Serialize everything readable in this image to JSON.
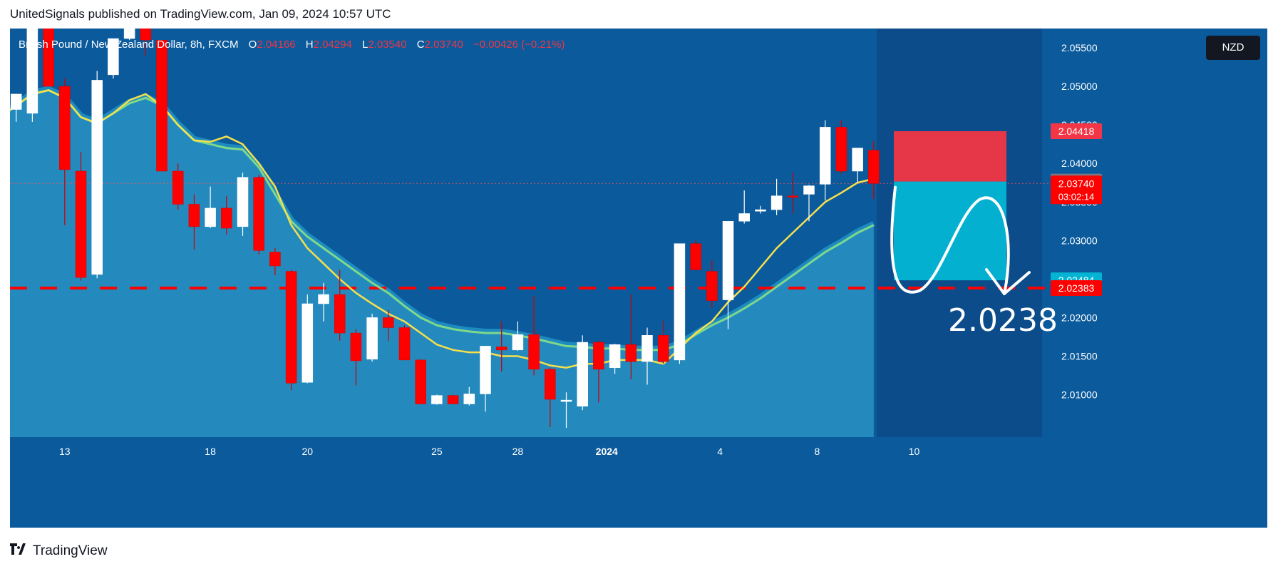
{
  "header": {
    "text": "UnitedSignals published on TradingView.com, Jan 09, 2024 10:57 UTC"
  },
  "legend": {
    "symbol": "British Pound / New Zealand Dollar, 8h, FXCM",
    "open_label": "O",
    "open": "2.04166",
    "high_label": "H",
    "high": "2.04294",
    "low_label": "L",
    "low": "2.03540",
    "close_label": "C",
    "close": "2.03740",
    "change": "−0.00426 (−0.21%)"
  },
  "currency": "NZD",
  "footer": {
    "brand": "TradingView",
    "logo_icon": "tradingview-logo-icon"
  },
  "colors": {
    "background": "#0a5a9c",
    "up": "#ffffff",
    "down": "#ff0000",
    "ma_fast": "#f7e04b",
    "ma_slow": "#7fd88a",
    "area": "#2d9bc9",
    "stop_zone": "#f23645",
    "target_zone": "#03b5d3",
    "level_line": "#ff0000"
  },
  "chart_data": {
    "type": "candlestick",
    "timeframe": "8h",
    "y_axis": {
      "ticks": [
        "2.05500",
        "2.05000",
        "2.04500",
        "2.04000",
        "2.03500",
        "2.03000",
        "2.02500",
        "2.02000",
        "2.01500",
        "2.01000"
      ],
      "ylim": [
        2.0045,
        2.0575
      ]
    },
    "x_axis": {
      "tick_labels": [
        "13",
        "18",
        "20",
        "25",
        "28",
        "2024",
        "4",
        "8",
        "10"
      ]
    },
    "candles": [
      {
        "o": 2.0478,
        "h": 2.0488,
        "l": 2.046,
        "c": 2.046
      },
      {
        "o": 2.047,
        "h": 2.049,
        "l": 2.0454,
        "c": 2.049
      },
      {
        "o": 2.0465,
        "h": 2.0595,
        "l": 2.0454,
        "c": 2.0585
      },
      {
        "o": 2.0585,
        "h": 2.0595,
        "l": 2.05,
        "c": 2.05
      },
      {
        "o": 2.05,
        "h": 2.051,
        "l": 2.032,
        "c": 2.0392
      },
      {
        "o": 2.039,
        "h": 2.0415,
        "l": 2.0248,
        "c": 2.0252
      },
      {
        "o": 2.0256,
        "h": 2.052,
        "l": 2.0251,
        "c": 2.0508
      },
      {
        "o": 2.0515,
        "h": 2.0562,
        "l": 2.051,
        "c": 2.0562
      },
      {
        "o": 2.0562,
        "h": 2.0585,
        "l": 2.056,
        "c": 2.0585
      },
      {
        "o": 2.059,
        "h": 2.0598,
        "l": 2.054,
        "c": 2.056
      },
      {
        "o": 2.056,
        "h": 2.056,
        "l": 2.039,
        "c": 2.039
      },
      {
        "o": 2.039,
        "h": 2.04,
        "l": 2.034,
        "c": 2.0347
      },
      {
        "o": 2.0347,
        "h": 2.036,
        "l": 2.0288,
        "c": 2.0318
      },
      {
        "o": 2.0318,
        "h": 2.037,
        "l": 2.0316,
        "c": 2.0342
      },
      {
        "o": 2.0342,
        "h": 2.0358,
        "l": 2.0308,
        "c": 2.0316
      },
      {
        "o": 2.0318,
        "h": 2.0388,
        "l": 2.0306,
        "c": 2.0382
      },
      {
        "o": 2.0382,
        "h": 2.0385,
        "l": 2.0282,
        "c": 2.0287
      },
      {
        "o": 2.0285,
        "h": 2.029,
        "l": 2.0255,
        "c": 2.0267
      },
      {
        "o": 2.026,
        "h": 2.0262,
        "l": 2.0106,
        "c": 2.0115
      },
      {
        "o": 2.0116,
        "h": 2.023,
        "l": 2.0115,
        "c": 2.0218
      },
      {
        "o": 2.0218,
        "h": 2.0245,
        "l": 2.0195,
        "c": 2.023
      },
      {
        "o": 2.023,
        "h": 2.0262,
        "l": 2.017,
        "c": 2.018
      },
      {
        "o": 2.018,
        "h": 2.0185,
        "l": 2.0112,
        "c": 2.0144
      },
      {
        "o": 2.0146,
        "h": 2.0205,
        "l": 2.0143,
        "c": 2.02
      },
      {
        "o": 2.02,
        "h": 2.021,
        "l": 2.017,
        "c": 2.0187
      },
      {
        "o": 2.0187,
        "h": 2.019,
        "l": 2.0145,
        "c": 2.0145
      },
      {
        "o": 2.0145,
        "h": 2.0146,
        "l": 2.0088,
        "c": 2.0088
      },
      {
        "o": 2.0088,
        "h": 2.01,
        "l": 2.0087,
        "c": 2.0099
      },
      {
        "o": 2.0099,
        "h": 2.01,
        "l": 2.0088,
        "c": 2.0088
      },
      {
        "o": 2.0088,
        "h": 2.011,
        "l": 2.0086,
        "c": 2.0101
      },
      {
        "o": 2.0101,
        "h": 2.0163,
        "l": 2.0078,
        "c": 2.0163
      },
      {
        "o": 2.0162,
        "h": 2.0195,
        "l": 2.013,
        "c": 2.0158
      },
      {
        "o": 2.0158,
        "h": 2.0195,
        "l": 2.0157,
        "c": 2.0178
      },
      {
        "o": 2.0178,
        "h": 2.0228,
        "l": 2.0125,
        "c": 2.0133
      },
      {
        "o": 2.0133,
        "h": 2.0135,
        "l": 2.0058,
        "c": 2.0094
      },
      {
        "o": 2.0093,
        "h": 2.0103,
        "l": 2.0057,
        "c": 2.0093
      },
      {
        "o": 2.0085,
        "h": 2.0177,
        "l": 2.008,
        "c": 2.0168
      },
      {
        "o": 2.0168,
        "h": 2.017,
        "l": 2.009,
        "c": 2.0133
      },
      {
        "o": 2.0135,
        "h": 2.0166,
        "l": 2.0127,
        "c": 2.0165
      },
      {
        "o": 2.0165,
        "h": 2.023,
        "l": 2.012,
        "c": 2.0143
      },
      {
        "o": 2.0143,
        "h": 2.0187,
        "l": 2.0113,
        "c": 2.0177
      },
      {
        "o": 2.0177,
        "h": 2.0196,
        "l": 2.014,
        "c": 2.0143
      },
      {
        "o": 2.0145,
        "h": 2.0296,
        "l": 2.014,
        "c": 2.0296
      },
      {
        "o": 2.0296,
        "h": 2.03,
        "l": 2.0262,
        "c": 2.0262
      },
      {
        "o": 2.026,
        "h": 2.0274,
        "l": 2.0213,
        "c": 2.0222
      },
      {
        "o": 2.0223,
        "h": 2.0325,
        "l": 2.0185,
        "c": 2.0325
      },
      {
        "o": 2.0325,
        "h": 2.0365,
        "l": 2.0322,
        "c": 2.0335
      },
      {
        "o": 2.0338,
        "h": 2.0345,
        "l": 2.0335,
        "c": 2.034
      },
      {
        "o": 2.034,
        "h": 2.038,
        "l": 2.0333,
        "c": 2.0358
      },
      {
        "o": 2.0358,
        "h": 2.0388,
        "l": 2.0335,
        "c": 2.0356
      },
      {
        "o": 2.036,
        "h": 2.0372,
        "l": 2.0325,
        "c": 2.0371
      },
      {
        "o": 2.0373,
        "h": 2.0456,
        "l": 2.0352,
        "c": 2.0447
      },
      {
        "o": 2.0447,
        "h": 2.0456,
        "l": 2.0387,
        "c": 2.039
      },
      {
        "o": 2.039,
        "h": 2.042,
        "l": 2.0375,
        "c": 2.042
      },
      {
        "o": 2.0417,
        "h": 2.0429,
        "l": 2.0354,
        "c": 2.0374
      }
    ],
    "ma_fast": [
      2.046,
      2.0475,
      2.049,
      2.0495,
      2.0485,
      2.046,
      2.0452,
      2.0465,
      2.0482,
      2.049,
      2.0475,
      2.045,
      2.043,
      2.0428,
      2.0435,
      2.0425,
      2.04,
      2.037,
      2.032,
      2.029,
      2.027,
      2.025,
      2.0232,
      2.0218,
      2.0205,
      2.0195,
      2.018,
      2.0165,
      2.0158,
      2.0155,
      2.0155,
      2.015,
      2.015,
      2.0145,
      2.0138,
      2.0135,
      2.014,
      2.014,
      2.0145,
      2.0145,
      2.0145,
      2.014,
      2.016,
      2.018,
      2.0195,
      2.022,
      2.024,
      2.0265,
      2.029,
      2.031,
      2.033,
      2.035,
      2.0362,
      2.0375,
      2.038
    ],
    "ma_slow": [
      2.046,
      2.0475,
      2.049,
      2.0495,
      2.0485,
      2.046,
      2.0452,
      2.0465,
      2.0478,
      2.0485,
      2.0475,
      2.045,
      2.043,
      2.0425,
      2.042,
      2.0418,
      2.0395,
      2.036,
      2.0325,
      2.0305,
      2.029,
      2.0275,
      2.026,
      2.0245,
      2.0232,
      2.0215,
      2.02,
      2.019,
      2.0185,
      2.0182,
      2.018,
      2.018,
      2.0177,
      2.0173,
      2.0168,
      2.0163,
      2.0162,
      2.016,
      2.016,
      2.0158,
      2.0158,
      2.0158,
      2.0165,
      2.0178,
      2.019,
      2.02,
      2.0212,
      2.0225,
      2.024,
      2.0255,
      2.027,
      2.0285,
      2.0297,
      2.031,
      2.032
    ],
    "levels": {
      "dashed_level": 2.02383,
      "price_line": 2.0374
    },
    "position": {
      "stop": 2.04418,
      "entry": 2.03765,
      "target": 2.02484
    },
    "price_labels": [
      {
        "text": "2.04418",
        "value": 2.04418,
        "color": "#f23645"
      },
      {
        "text": "2.03765",
        "value": 2.03765,
        "color": "#787b86"
      },
      {
        "text": "2.03740",
        "value": 2.0374,
        "color": "#ff0000",
        "countdown": "03:02:14"
      },
      {
        "text": "2.02484",
        "value": 2.02484,
        "color": "#03b5d3"
      },
      {
        "text": "2.02383",
        "value": 2.02383,
        "color": "#ff0000"
      }
    ],
    "annotation": {
      "text": "2.0238"
    },
    "drawing": {
      "shape": "curved-arrow-down",
      "color": "#ffffff"
    }
  }
}
